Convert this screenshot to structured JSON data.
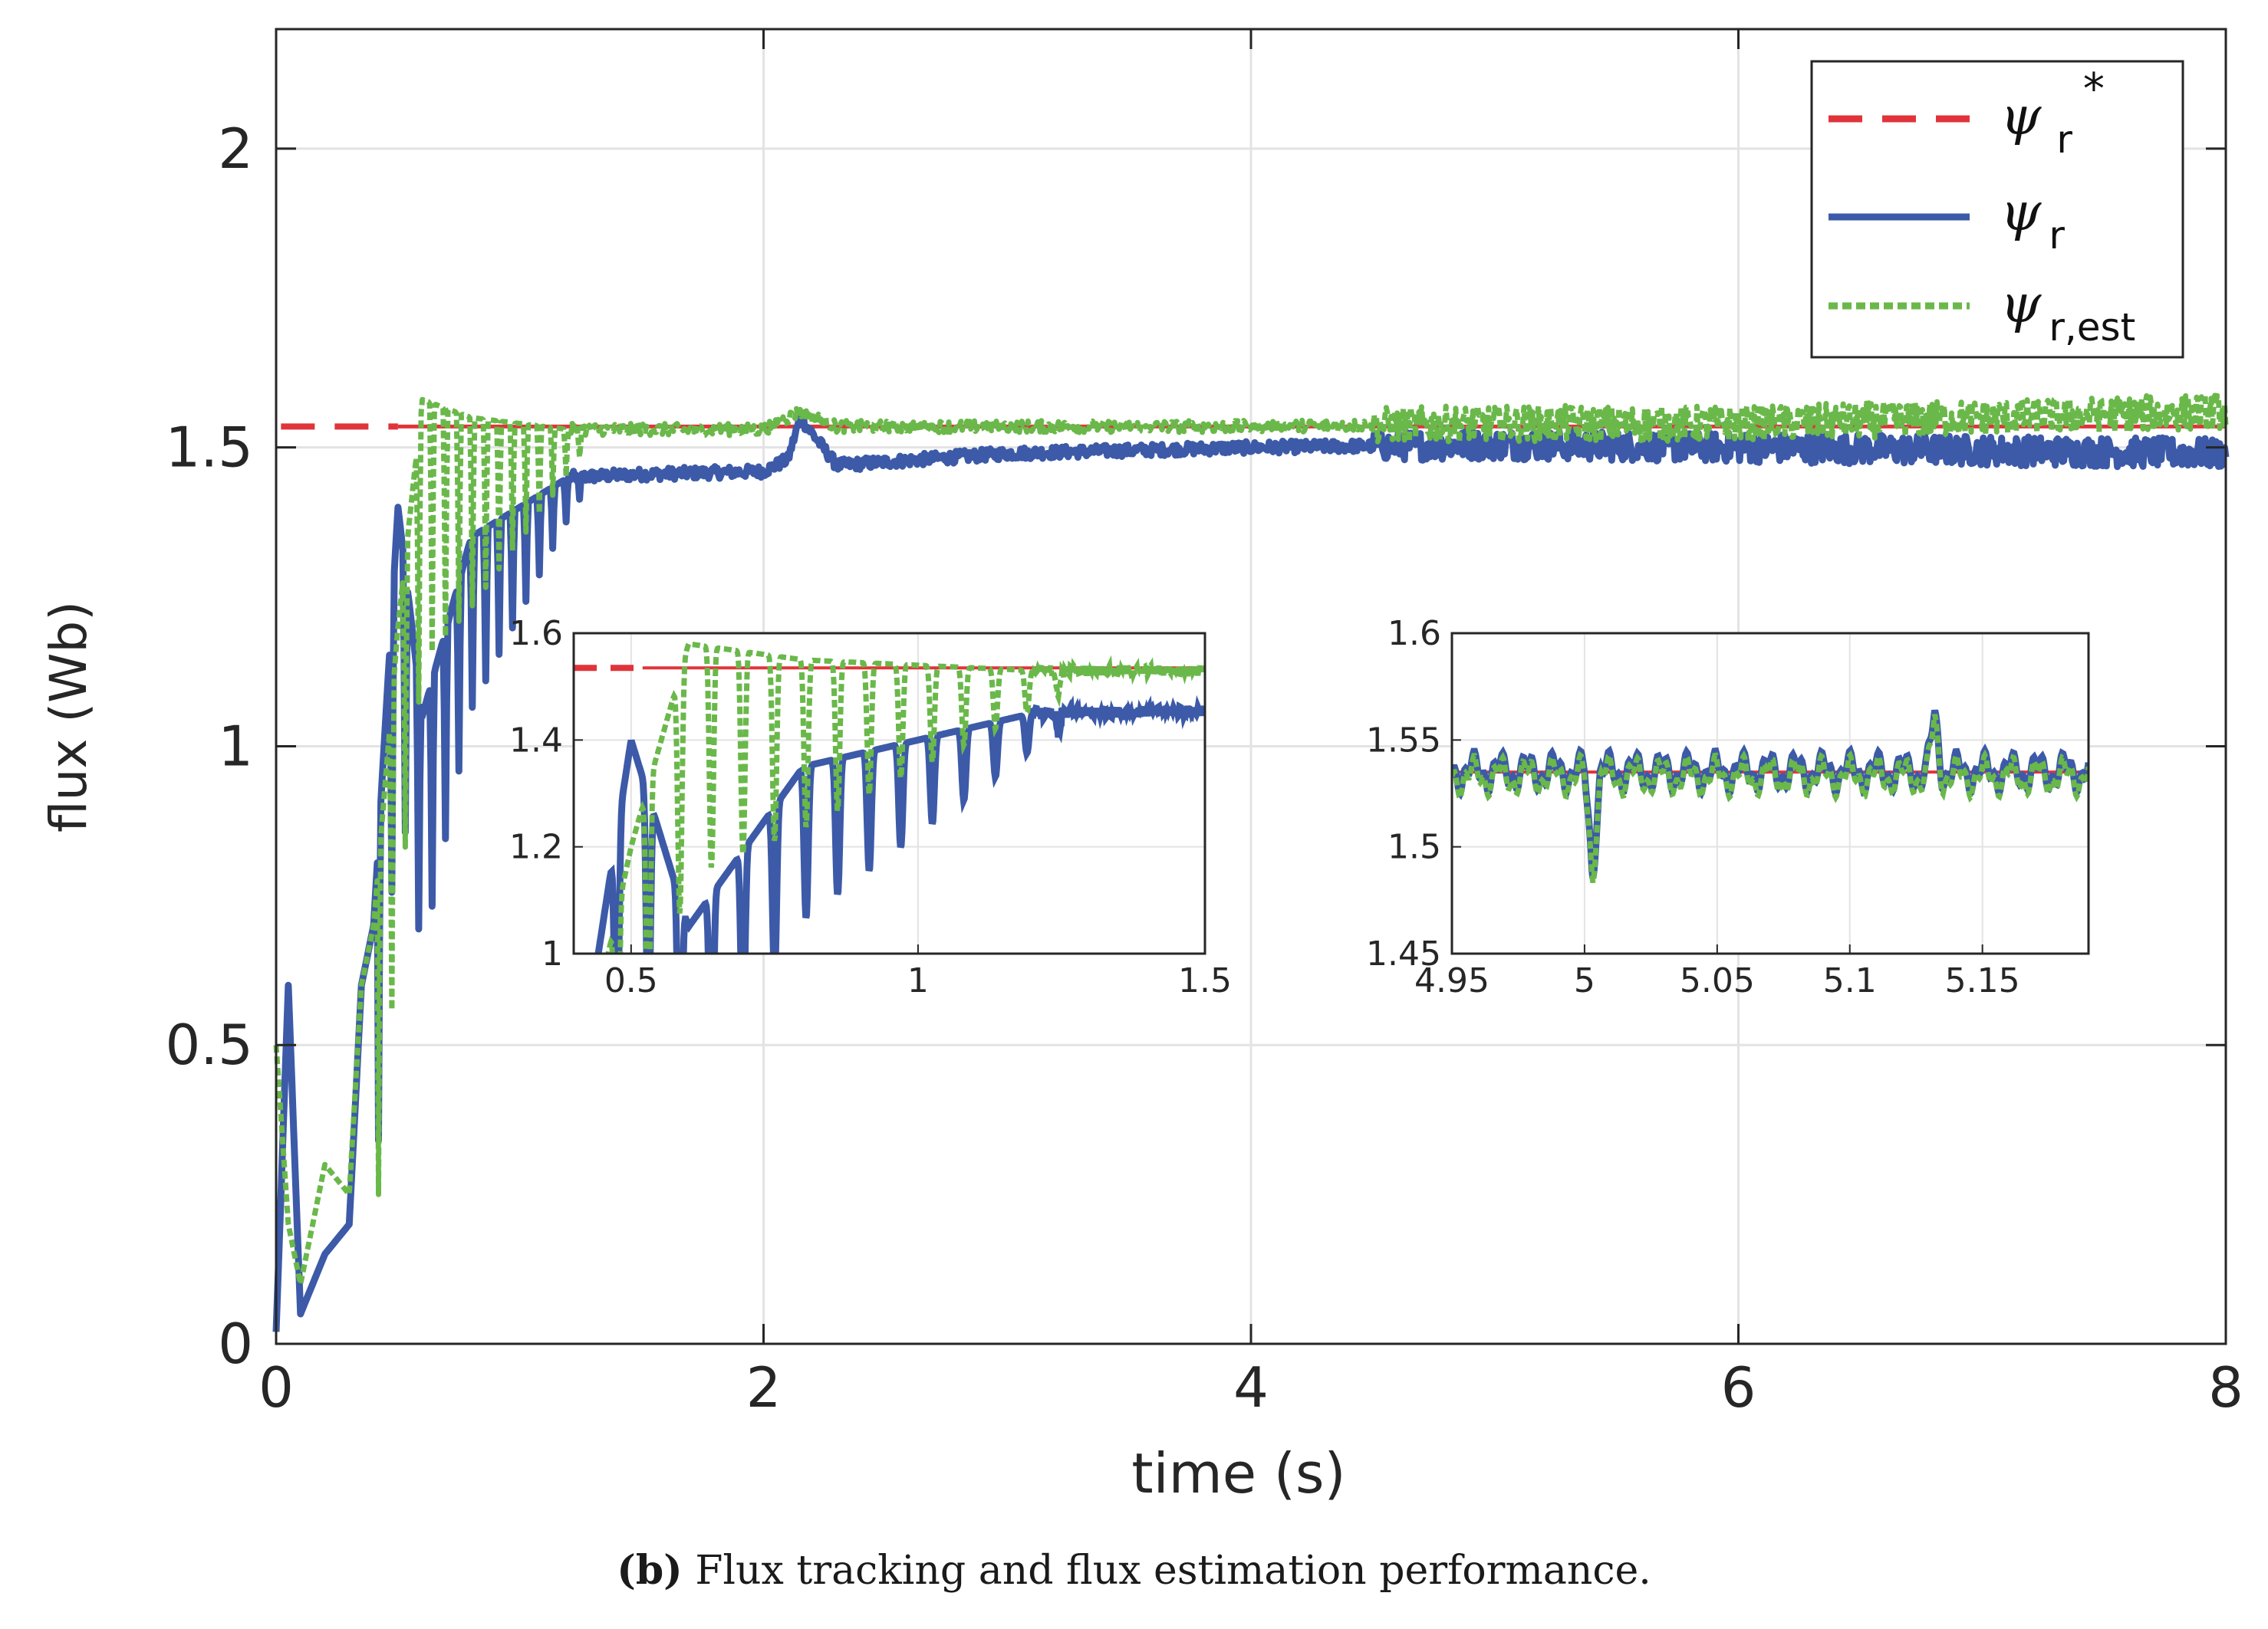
{
  "chart_data": {
    "type": "line",
    "title": "",
    "xlabel": "time (s)",
    "ylabel": "flux (Wb)",
    "xlim": [
      0,
      8
    ],
    "ylim": [
      0,
      2.2
    ],
    "xticks": [
      "0",
      "2",
      "4",
      "6",
      "8"
    ],
    "yticks": [
      "0",
      "0.5",
      "1",
      "1.5",
      "2"
    ],
    "grid": true,
    "legend_position": "top-right",
    "colors": {
      "reference": "#e0343a",
      "actual": "#3c5aa8",
      "estimated": "#6ab84a"
    },
    "legend": [
      {
        "symbol": "ψ",
        "sub": "r",
        "sup": "*",
        "style": "dashed"
      },
      {
        "symbol": "ψ",
        "sub": "r",
        "sup": "",
        "style": "solid"
      },
      {
        "symbol": "ψ",
        "sub": "r,est",
        "sup": "",
        "style": "dotted"
      }
    ],
    "series": [
      {
        "name": "psi_r*",
        "x": [
          0,
          0.5,
          8
        ],
        "y": [
          1.535,
          1.535,
          1.535
        ]
      },
      {
        "name": "psi_r",
        "x": [
          0,
          0.05,
          0.1,
          0.2,
          0.3,
          0.35,
          0.4,
          0.5,
          0.6,
          0.8,
          1.0,
          1.2,
          1.5,
          2.0,
          2.1,
          2.15,
          2.3,
          3.0,
          4.0,
          5.0,
          6.0,
          7.0,
          8.0
        ],
        "y": [
          0.02,
          0.6,
          0.05,
          0.15,
          0.2,
          0.6,
          0.7,
          1.4,
          1.05,
          1.35,
          1.4,
          1.45,
          1.455,
          1.46,
          1.48,
          1.55,
          1.47,
          1.49,
          1.5,
          1.505,
          1.5,
          1.495,
          1.49
        ]
      },
      {
        "name": "psi_r,est",
        "x": [
          0,
          0.05,
          0.1,
          0.2,
          0.3,
          0.35,
          0.4,
          0.5,
          0.6,
          0.8,
          1.0,
          1.2,
          1.5,
          2.0,
          2.15,
          2.3,
          3.0,
          4.0,
          5.0,
          6.0,
          7.0,
          8.0
        ],
        "y": [
          0.5,
          0.2,
          0.1,
          0.3,
          0.25,
          0.6,
          0.7,
          1.2,
          1.58,
          1.55,
          1.54,
          1.53,
          1.53,
          1.53,
          1.56,
          1.535,
          1.535,
          1.535,
          1.54,
          1.54,
          1.55,
          1.56
        ]
      }
    ],
    "insets": [
      {
        "name": "inset-left",
        "xlim": [
          0.4,
          1.5
        ],
        "ylim": [
          1.0,
          1.6
        ],
        "xticks": [
          "0.5",
          "1",
          "1.5"
        ],
        "yticks": [
          "1",
          "1.2",
          "1.4",
          "1.6"
        ]
      },
      {
        "name": "inset-right",
        "xlim": [
          4.95,
          5.19
        ],
        "ylim": [
          1.45,
          1.6
        ],
        "xticks": [
          "4.95",
          "5",
          "5.05",
          "5.1",
          "5.15"
        ],
        "yticks": [
          "1.45",
          "1.5",
          "1.55",
          "1.6"
        ]
      }
    ]
  },
  "caption": {
    "label": "(b)",
    "text": " Flux tracking and flux estimation performance."
  }
}
